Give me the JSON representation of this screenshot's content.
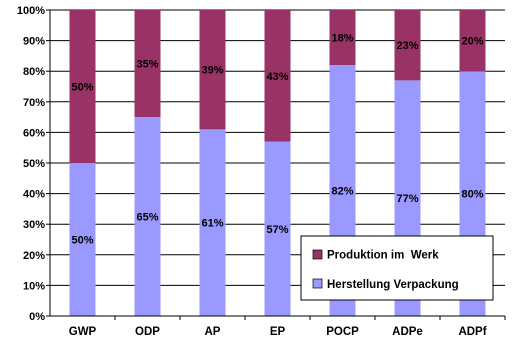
{
  "chart_data": {
    "type": "bar",
    "stacked": true,
    "percent_stacked": true,
    "categories": [
      "GWP",
      "ODP",
      "AP",
      "EP",
      "POCP",
      "ADPe",
      "ADPf"
    ],
    "series": [
      {
        "name": "Herstellung Verpackung",
        "color": "#9999ff",
        "values": [
          50,
          65,
          61,
          57,
          82,
          77,
          80
        ],
        "labels": [
          "50%",
          "65%",
          "61%",
          "57%",
          "82%",
          "77%",
          "80%"
        ]
      },
      {
        "name": "Produktion im  Werk",
        "color": "#993366",
        "values": [
          50,
          35,
          39,
          43,
          18,
          23,
          20
        ],
        "labels": [
          "50%",
          "35%",
          "39%",
          "43%",
          "18%",
          "23%",
          "20%"
        ]
      }
    ],
    "y_ticks": [
      "0%",
      "10%",
      "20%",
      "30%",
      "40%",
      "50%",
      "60%",
      "70%",
      "80%",
      "90%",
      "100%"
    ],
    "ylim": [
      0,
      100
    ],
    "grid": true,
    "legend_position": "bottom-right"
  }
}
